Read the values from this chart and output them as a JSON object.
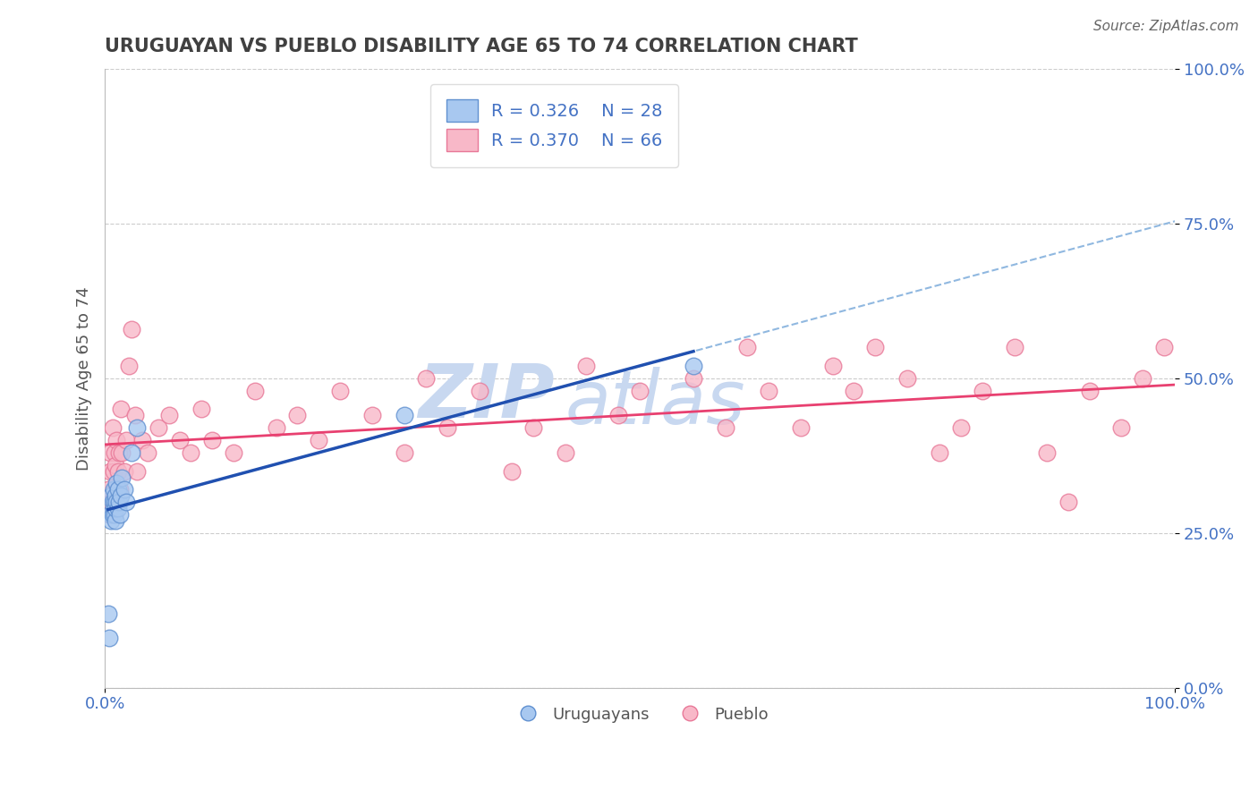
{
  "title": "URUGUAYAN VS PUEBLO DISABILITY AGE 65 TO 74 CORRELATION CHART",
  "source_text": "Source: ZipAtlas.com",
  "ylabel": "Disability Age 65 to 74",
  "xlim": [
    0.0,
    1.0
  ],
  "ylim": [
    0.0,
    1.0
  ],
  "y_tick_positions": [
    0.0,
    0.25,
    0.5,
    0.75,
    1.0
  ],
  "y_tick_labels": [
    "0.0%",
    "25.0%",
    "50.0%",
    "75.0%",
    "100.0%"
  ],
  "x_tick_labels": [
    "0.0%",
    "100.0%"
  ],
  "legend_r1": "R = 0.326",
  "legend_n1": "N = 28",
  "legend_r2": "R = 0.370",
  "legend_n2": "N = 66",
  "legend_label1": "Uruguayans",
  "legend_label2": "Pueblo",
  "uruguayan_color": "#A8C8F0",
  "pueblo_color": "#F8B8C8",
  "uruguayan_edge": "#6090D0",
  "pueblo_edge": "#E87898",
  "trend_uruguayan_color": "#2050B0",
  "trend_pueblo_color": "#E84070",
  "trend_dashed_color": "#90B8E0",
  "background_color": "#FFFFFF",
  "title_color": "#404040",
  "watermark_zip_color": "#C8D8F0",
  "watermark_atlas_color": "#C8D8F0",
  "uruguayan_x": [
    0.003,
    0.004,
    0.005,
    0.006,
    0.006,
    0.007,
    0.007,
    0.008,
    0.008,
    0.009,
    0.009,
    0.01,
    0.01,
    0.01,
    0.011,
    0.011,
    0.012,
    0.012,
    0.013,
    0.014,
    0.015,
    0.016,
    0.018,
    0.02,
    0.025,
    0.03,
    0.28,
    0.55
  ],
  "uruguayan_y": [
    0.12,
    0.08,
    0.28,
    0.27,
    0.31,
    0.3,
    0.28,
    0.29,
    0.32,
    0.28,
    0.3,
    0.27,
    0.29,
    0.31,
    0.3,
    0.33,
    0.29,
    0.32,
    0.3,
    0.28,
    0.31,
    0.34,
    0.32,
    0.3,
    0.38,
    0.42,
    0.44,
    0.52
  ],
  "pueblo_x": [
    0.003,
    0.004,
    0.005,
    0.005,
    0.006,
    0.007,
    0.008,
    0.009,
    0.01,
    0.01,
    0.011,
    0.012,
    0.013,
    0.014,
    0.015,
    0.016,
    0.018,
    0.02,
    0.022,
    0.025,
    0.028,
    0.03,
    0.035,
    0.04,
    0.05,
    0.06,
    0.07,
    0.08,
    0.09,
    0.1,
    0.12,
    0.14,
    0.16,
    0.18,
    0.2,
    0.22,
    0.25,
    0.28,
    0.3,
    0.32,
    0.35,
    0.38,
    0.4,
    0.43,
    0.45,
    0.48,
    0.5,
    0.55,
    0.58,
    0.6,
    0.62,
    0.65,
    0.68,
    0.7,
    0.72,
    0.75,
    0.78,
    0.8,
    0.82,
    0.85,
    0.88,
    0.9,
    0.92,
    0.95,
    0.97,
    0.99
  ],
  "pueblo_y": [
    0.32,
    0.28,
    0.35,
    0.38,
    0.3,
    0.42,
    0.35,
    0.38,
    0.32,
    0.36,
    0.4,
    0.35,
    0.38,
    0.32,
    0.45,
    0.38,
    0.35,
    0.4,
    0.52,
    0.58,
    0.44,
    0.35,
    0.4,
    0.38,
    0.42,
    0.44,
    0.4,
    0.38,
    0.45,
    0.4,
    0.38,
    0.48,
    0.42,
    0.44,
    0.4,
    0.48,
    0.44,
    0.38,
    0.5,
    0.42,
    0.48,
    0.35,
    0.42,
    0.38,
    0.52,
    0.44,
    0.48,
    0.5,
    0.42,
    0.55,
    0.48,
    0.42,
    0.52,
    0.48,
    0.55,
    0.5,
    0.38,
    0.42,
    0.48,
    0.55,
    0.38,
    0.3,
    0.48,
    0.42,
    0.5,
    0.55
  ]
}
